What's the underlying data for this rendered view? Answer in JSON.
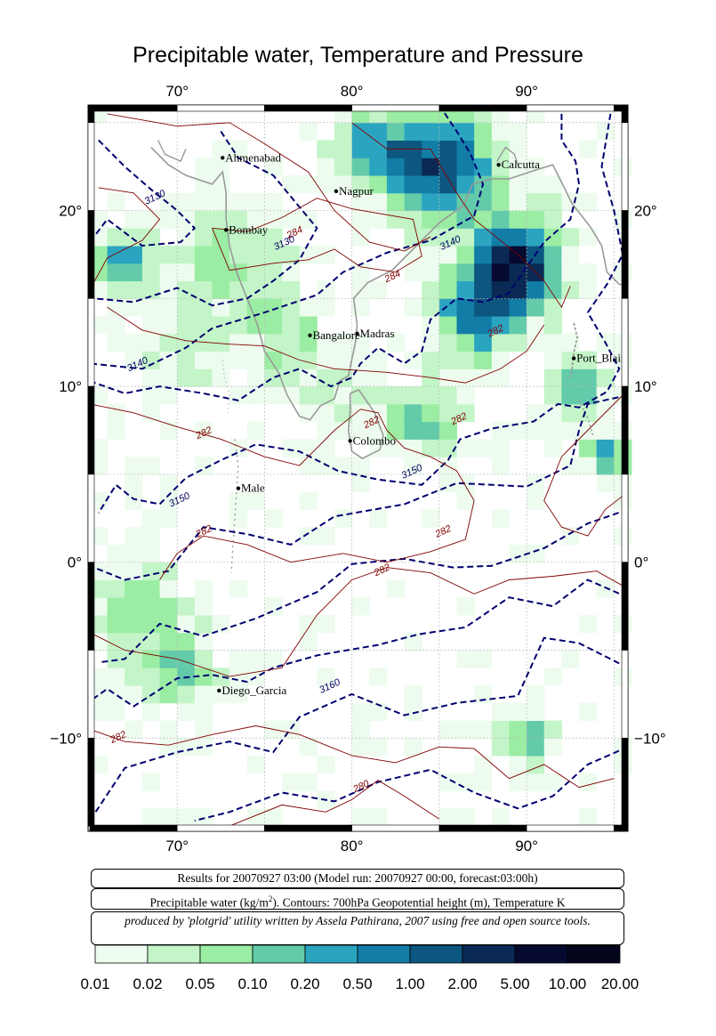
{
  "title": "Precipitable water, Temperature and Pressure",
  "axes": {
    "lon_ticks": [
      "70°",
      "80°",
      "90°"
    ],
    "lat_ticks": [
      "20°",
      "10°",
      "0°",
      "−10°"
    ]
  },
  "cities": [
    {
      "name": "Ahmenabad",
      "lon": 72.6,
      "lat": 23.0
    },
    {
      "name": "Nagpur",
      "lon": 79.1,
      "lat": 21.1
    },
    {
      "name": "Calcutta",
      "lon": 88.4,
      "lat": 22.6
    },
    {
      "name": "Bombay",
      "lon": 72.8,
      "lat": 18.9
    },
    {
      "name": "Bangalore",
      "lon": 77.6,
      "lat": 12.9
    },
    {
      "name": "Madras",
      "lon": 80.3,
      "lat": 13.0
    },
    {
      "name": "Port_Blair",
      "lon": 92.7,
      "lat": 11.6
    },
    {
      "name": "Colombo",
      "lon": 79.9,
      "lat": 6.9
    },
    {
      "name": "Male",
      "lon": 73.5,
      "lat": 4.2
    },
    {
      "name": "Diego_Garcia",
      "lon": 72.4,
      "lat": -7.3
    }
  ],
  "contour_labels": [
    {
      "text": "3130",
      "lon": 68.8,
      "lat": 20.6,
      "color": "#000060"
    },
    {
      "text": "3130",
      "lon": 76.2,
      "lat": 18.0,
      "color": "#000060"
    },
    {
      "text": "284",
      "lon": 76.8,
      "lat": 18.6,
      "color": "#800000"
    },
    {
      "text": "3140",
      "lon": 85.7,
      "lat": 18.0,
      "color": "#000060"
    },
    {
      "text": "284",
      "lon": 82.4,
      "lat": 16.1,
      "color": "#800000"
    },
    {
      "text": "282",
      "lon": 88.3,
      "lat": 13.0,
      "color": "#800000"
    },
    {
      "text": "3140",
      "lon": 67.8,
      "lat": 11.1,
      "color": "#000060"
    },
    {
      "text": "282",
      "lon": 86.2,
      "lat": 8.0,
      "color": "#800000"
    },
    {
      "text": "282",
      "lon": 71.6,
      "lat": 7.2,
      "color": "#800000"
    },
    {
      "text": "282",
      "lon": 81.2,
      "lat": 7.8,
      "color": "#800000"
    },
    {
      "text": "3150",
      "lon": 83.5,
      "lat": 5.0,
      "color": "#000060"
    },
    {
      "text": "3150",
      "lon": 70.2,
      "lat": 3.4,
      "color": "#000060"
    },
    {
      "text": "282",
      "lon": 71.6,
      "lat": 1.6,
      "color": "#800000"
    },
    {
      "text": "282",
      "lon": 85.3,
      "lat": 1.6,
      "color": "#800000"
    },
    {
      "text": "282",
      "lon": 81.8,
      "lat": -0.6,
      "color": "#800000"
    },
    {
      "text": "3160",
      "lon": 78.8,
      "lat": -7.2,
      "color": "#000060"
    },
    {
      "text": "282",
      "lon": 66.7,
      "lat": -10.1,
      "color": "#800000"
    },
    {
      "text": "280",
      "lon": 80.6,
      "lat": -12.9,
      "color": "#800000"
    }
  ],
  "info": {
    "line1": "Results for 20070927 03:00 (Model run: 20070927 00:00, forecast:03:00h)",
    "line2_a": "Precipitable water (kg/m",
    "line2_sup": "2",
    "line2_b": ").  Contours: 700hPa Geopotential height (m), Temperature K",
    "line3": "produced by 'plotgrid' utility written by Assela Pathirana, 2007 using free and open source tools."
  },
  "colorbar": {
    "labels": [
      "0.01",
      "0.02",
      "0.05",
      "0.10",
      "0.20",
      "0.50",
      "1.00",
      "2.00",
      "5.00",
      "10.00",
      "20.00"
    ],
    "colors": [
      "#edfcee",
      "#c3f5c8",
      "#9aeda3",
      "#63cbaa",
      "#2ba4c0",
      "#127da6",
      "#0d5680",
      "#0a2a55",
      "#060a30",
      "#03051c"
    ]
  },
  "colors": {
    "coast": "#999999",
    "height_contour": "#000070",
    "temp_contour": "#800000",
    "grid": "#bbbbbb"
  }
}
